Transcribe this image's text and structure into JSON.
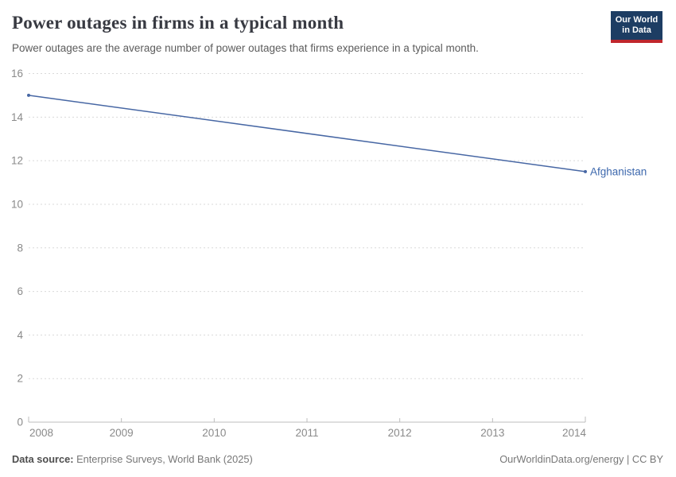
{
  "header": {
    "title": "Power outages in firms in a typical month",
    "subtitle": "Power outages are the average number of power outages that firms experience in a typical month.",
    "logo": {
      "line1": "Our World",
      "line2": "in Data"
    }
  },
  "footer": {
    "source_label": "Data source:",
    "source_value": " Enterprise Surveys, World Bank (2025)",
    "right_text": "OurWorldinData.org/energy | CC BY"
  },
  "colors": {
    "line": "#4767a4",
    "entity_label": "#3d68ad",
    "grid": "#d9d9d9",
    "axis": "#bcbcbc",
    "tick_label": "#8a8a8a",
    "logo_bg": "#1d3d63",
    "logo_underline": "#c0262c"
  },
  "chart_data": {
    "type": "line",
    "title": "Power outages in firms in a typical month",
    "xlabel": "",
    "ylabel": "",
    "xlim": [
      2008,
      2014
    ],
    "ylim": [
      0,
      16
    ],
    "grid": "horizontal-dashed",
    "legend_position": "end-of-line-label",
    "x_ticks": [
      2008,
      2009,
      2010,
      2011,
      2012,
      2013,
      2014
    ],
    "y_ticks": [
      0,
      2,
      4,
      6,
      8,
      10,
      12,
      14,
      16
    ],
    "series": [
      {
        "name": "Afghanistan",
        "x": [
          2008,
          2014
        ],
        "values": [
          15,
          11.5
        ],
        "label": "Afghanistan"
      }
    ]
  }
}
